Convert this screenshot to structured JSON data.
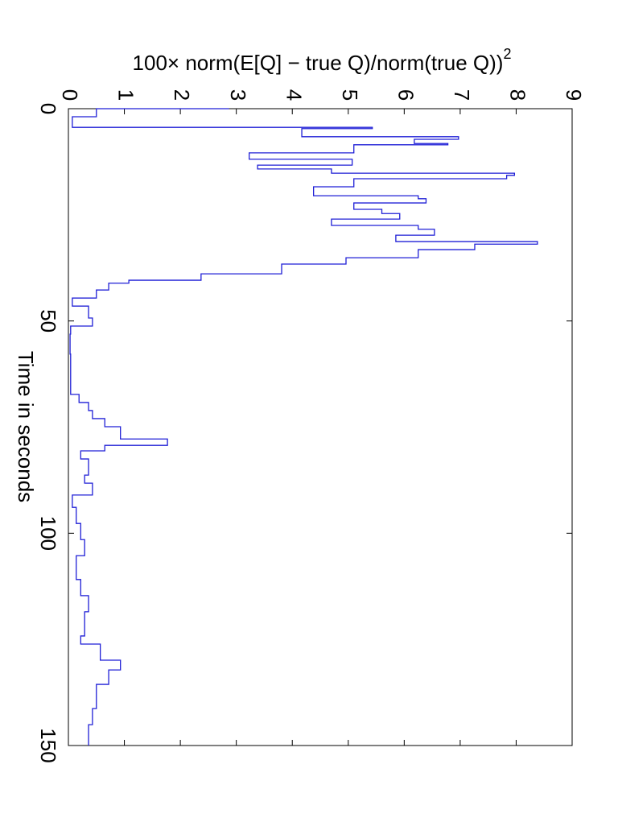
{
  "chart_data": {
    "type": "line",
    "xlabel": "Time in seconds",
    "ylabel": "100× norm(E[Q] − true Q)/norm(true Q))",
    "ylabel_superscript": "2",
    "step": true,
    "x": [
      0,
      1.9,
      4.4,
      4.7,
      6.6,
      7.2,
      8.2,
      8.5,
      10.4,
      11.9,
      13.3,
      14.2,
      15.2,
      15.7,
      16.5,
      18.4,
      20.5,
      21.2,
      22.2,
      23.7,
      24.7,
      26.0,
      27.5,
      28.4,
      29.8,
      31.3,
      31.9,
      33.2,
      35.1,
      36.6,
      38.9,
      40.4,
      41.1,
      42.7,
      44.6,
      46.5,
      49.3,
      51.2,
      53.1,
      57.8,
      67.3,
      69.2,
      71.1,
      73.0,
      74.9,
      77.8,
      79.3,
      80.6,
      82.5,
      86.3,
      88.2,
      91.0,
      93.9,
      97.7,
      101.5,
      105.3,
      110.9,
      114.7,
      118.5,
      124.2,
      126.1,
      129.9,
      132.2,
      135.6,
      141.3,
      145.1,
      150
    ],
    "series": [
      {
        "color": "#1f1fd6",
        "values": [
          2.87,
          0.5,
          0.07,
          5.43,
          4.17,
          6.97,
          6.18,
          6.78,
          5.1,
          3.23,
          5.07,
          3.38,
          4.7,
          7.97,
          7.83,
          5.1,
          4.38,
          6.25,
          6.39,
          5.1,
          5.6,
          5.92,
          4.7,
          6.25,
          6.54,
          5.85,
          8.38,
          7.26,
          6.25,
          4.96,
          3.81,
          2.37,
          1.08,
          0.72,
          0.5,
          0.07,
          0.36,
          0.43,
          0.04,
          0.03,
          0.04,
          0.19,
          0.36,
          0.43,
          0.65,
          0.93,
          1.77,
          0.65,
          0.22,
          0.36,
          0.29,
          0.43,
          0.07,
          0.14,
          0.22,
          0.29,
          0.14,
          0.22,
          0.36,
          0.29,
          0.22,
          0.57,
          0.93,
          0.72,
          0.5,
          0.43,
          0.36
        ]
      }
    ],
    "xlim": [
      0,
      150
    ],
    "xticks": [
      0,
      50,
      100,
      150
    ],
    "ylim": [
      0,
      9
    ],
    "yticks": [
      0,
      1,
      2,
      3,
      4,
      5,
      6,
      7,
      8,
      9
    ]
  }
}
